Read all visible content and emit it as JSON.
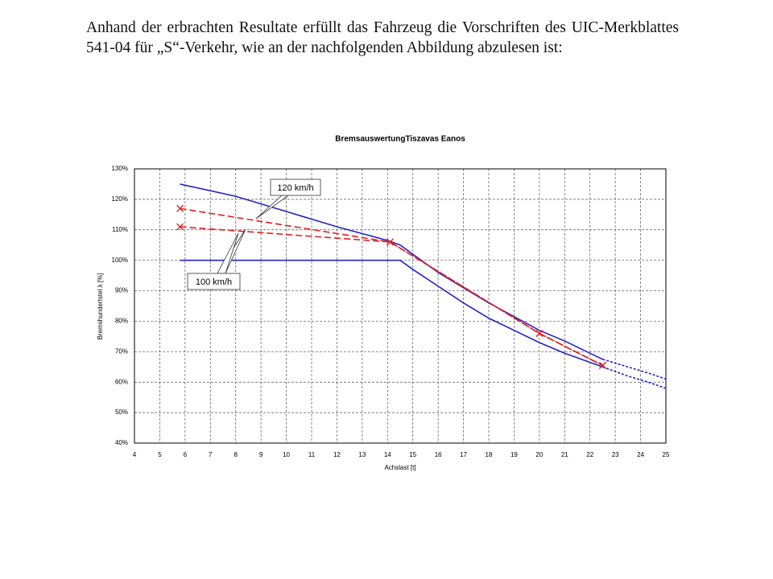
{
  "paragraph": "Anhand der erbrachten Resultate erfüllt das Fahrzeug die Vorschriften des UIC-Merkblattes 541-04 für „S“-Verkehr, wie an der nachfolgenden Abbildung abzulesen ist:",
  "chart_data": {
    "type": "line",
    "title": "BremsauswertungTiszavas Eanos",
    "x_label": "Achslast [t]",
    "y_label": "Bremshundertstel λ [%]",
    "xlim": [
      4,
      25
    ],
    "ylim": [
      40,
      130
    ],
    "xticks": [
      4,
      5,
      6,
      7,
      8,
      9,
      10,
      11,
      12,
      13,
      14,
      15,
      16,
      17,
      18,
      19,
      20,
      21,
      22,
      23,
      24,
      25
    ],
    "yticks": [
      {
        "value": 40,
        "label": "40%"
      },
      {
        "value": 50,
        "label": "50%"
      },
      {
        "value": 60,
        "label": "60%"
      },
      {
        "value": 70,
        "label": "70%"
      },
      {
        "value": 80,
        "label": "80%"
      },
      {
        "value": 90,
        "label": "90%"
      },
      {
        "value": 100,
        "label": "100%"
      },
      {
        "value": 110,
        "label": "110%"
      },
      {
        "value": 120,
        "label": "120%"
      },
      {
        "value": 130,
        "label": "130%"
      }
    ],
    "grid": true,
    "series": [
      {
        "color": "#2222cc",
        "dash": "solid",
        "x": [
          5.8,
          8,
          10,
          12,
          14,
          14.5,
          15,
          16,
          17,
          18,
          19,
          20,
          21,
          22.5
        ],
        "values": [
          125,
          121,
          116,
          111,
          106.5,
          105,
          102,
          96,
          91,
          86,
          81.5,
          77,
          73.5,
          67.5
        ]
      },
      {
        "color": "#2222cc",
        "dash": "dotted",
        "x": [
          22.5,
          23.5,
          24.3,
          25
        ],
        "values": [
          67.5,
          65,
          63,
          61
        ]
      },
      {
        "color": "#2222cc",
        "dash": "solid",
        "x": [
          5.8,
          14.5,
          15,
          16,
          17,
          18,
          19,
          20,
          21,
          22.5
        ],
        "values": [
          100,
          100,
          97,
          91.5,
          86,
          81,
          77,
          73,
          69.5,
          65
        ]
      },
      {
        "color": "#2222cc",
        "dash": "dotted",
        "x": [
          22.5,
          23.5,
          24.3,
          25
        ],
        "values": [
          65,
          62,
          60,
          58
        ]
      },
      {
        "name": "120 km/h",
        "color": "#e02020",
        "dash": "dashed",
        "marker": "x",
        "x": [
          5.8,
          14.1,
          20,
          22.5
        ],
        "values": [
          117,
          106,
          76,
          65.5
        ]
      },
      {
        "name": "100 km/h",
        "color": "#e02020",
        "dash": "dashed",
        "marker": "x",
        "x": [
          5.8,
          14.1,
          20,
          22.5
        ],
        "values": [
          111,
          106,
          76,
          65.5
        ]
      }
    ]
  }
}
